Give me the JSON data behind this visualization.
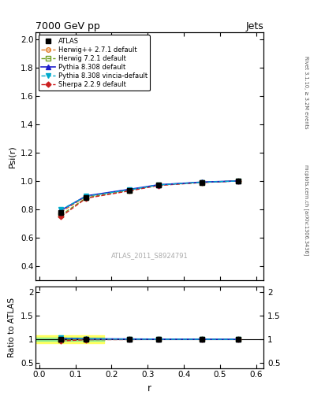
{
  "title": "7000 GeV pp",
  "title_right": "Jets",
  "ylabel_main": "Psi(r)",
  "ylabel_ratio": "Ratio to ATLAS",
  "xlabel": "r",
  "right_label_top": "Rivet 3.1.10, ≥ 3.2M events",
  "right_label_bot": "mcplots.cern.ch [arXiv:1306.3436]",
  "watermark": "ATLAS_2011_S8924791",
  "ylim_main": [
    0.3,
    2.05
  ],
  "ylim_ratio": [
    0.38,
    2.12
  ],
  "xlim": [
    -0.01,
    0.62
  ],
  "x_data": [
    0.06,
    0.13,
    0.25,
    0.33,
    0.45,
    0.55
  ],
  "atlas_y": [
    0.775,
    0.885,
    0.935,
    0.97,
    0.99,
    1.0
  ],
  "atlas_yerr": [
    0.012,
    0.008,
    0.006,
    0.005,
    0.004,
    0.003
  ],
  "herwig271_y": [
    0.78,
    0.892,
    0.938,
    0.972,
    0.991,
    1.0
  ],
  "herwig721_y": [
    0.758,
    0.882,
    0.934,
    0.97,
    0.989,
    1.0
  ],
  "pythia8308_y": [
    0.792,
    0.895,
    0.941,
    0.973,
    0.992,
    1.0
  ],
  "pythia8308v_y": [
    0.797,
    0.892,
    0.938,
    0.972,
    0.991,
    1.0
  ],
  "sherpa229_y": [
    0.748,
    0.878,
    0.93,
    0.968,
    0.989,
    1.0
  ],
  "atlas_color": "#000000",
  "herwig271_color": "#e07820",
  "herwig721_color": "#70a020",
  "pythia8308_color": "#2020cc",
  "pythia8308v_color": "#00aacc",
  "sherpa229_color": "#cc2020",
  "band_yellow": "#ffff60",
  "band_green": "#90ee90"
}
